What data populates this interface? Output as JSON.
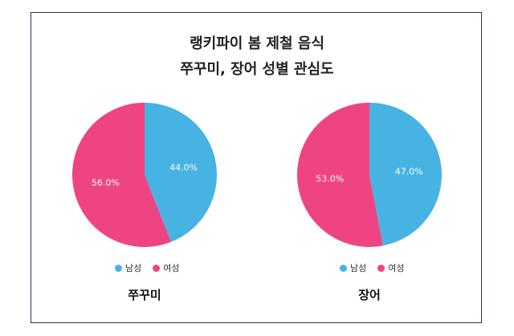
{
  "title_line1": "랭키파이 봄 제철 음식",
  "title_line2": "쭈꾸미, 장어 성별 관심도",
  "colors": {
    "male": "#47b3e3",
    "female": "#ee4582"
  },
  "chart_data": [
    {
      "type": "pie",
      "name": "쭈꾸미",
      "categories": [
        "남성",
        "여성"
      ],
      "values": [
        44.0,
        56.0
      ],
      "labels": [
        "44.0%",
        "56.0%"
      ],
      "legend": [
        "남성",
        "여성"
      ]
    },
    {
      "type": "pie",
      "name": "장어",
      "categories": [
        "남성",
        "여성"
      ],
      "values": [
        47.0,
        53.0
      ],
      "labels": [
        "47.0%",
        "53.0%"
      ],
      "legend": [
        "남성",
        "여성"
      ]
    }
  ]
}
